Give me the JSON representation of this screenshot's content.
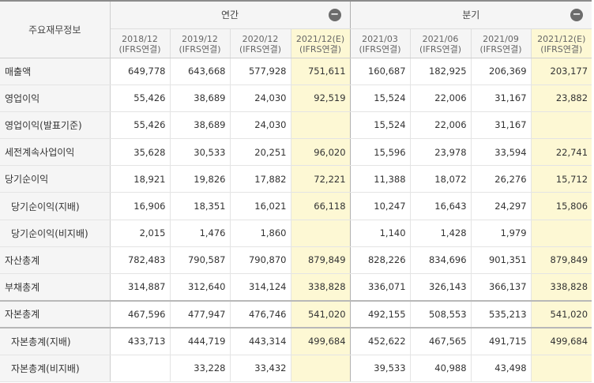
{
  "header": {
    "corner_label": "주요재무정보",
    "annual_label": "연간",
    "quarter_label": "분기",
    "toggle_symbol": "−",
    "periods": [
      {
        "date": "2018/12",
        "basis": "(IFRS연결)"
      },
      {
        "date": "2019/12",
        "basis": "(IFRS연결)"
      },
      {
        "date": "2020/12",
        "basis": "(IFRS연결)"
      },
      {
        "date": "2021/12(E)",
        "basis": "(IFRS연결)"
      },
      {
        "date": "2021/03",
        "basis": "(IFRS연결)"
      },
      {
        "date": "2021/06",
        "basis": "(IFRS연결)"
      },
      {
        "date": "2021/09",
        "basis": "(IFRS연결)"
      },
      {
        "date": "2021/12(E)",
        "basis": "(IFRS연결)"
      }
    ]
  },
  "rows": [
    {
      "label": "매출액",
      "values": [
        "649,778",
        "643,668",
        "577,928",
        "751,611",
        "160,687",
        "182,925",
        "206,369",
        "203,177"
      ]
    },
    {
      "label": "영업이익",
      "values": [
        "55,426",
        "38,689",
        "24,030",
        "92,519",
        "15,524",
        "22,006",
        "31,167",
        "23,882"
      ]
    },
    {
      "label": "영업이익(발표기준)",
      "values": [
        "55,426",
        "38,689",
        "24,030",
        "",
        "15,524",
        "22,006",
        "31,167",
        ""
      ]
    },
    {
      "label": "세전계속사업이익",
      "values": [
        "35,628",
        "30,533",
        "20,251",
        "96,020",
        "15,596",
        "23,978",
        "33,594",
        "22,741"
      ]
    },
    {
      "label": "당기순이익",
      "values": [
        "18,921",
        "19,826",
        "17,882",
        "72,221",
        "11,388",
        "18,072",
        "26,276",
        "15,712"
      ]
    },
    {
      "label": "당기순이익(지배)",
      "values": [
        "16,906",
        "18,351",
        "16,021",
        "66,118",
        "10,247",
        "16,643",
        "24,297",
        "15,806"
      ]
    },
    {
      "label": "당기순이익(비지배)",
      "values": [
        "2,015",
        "1,476",
        "1,860",
        "",
        "1,140",
        "1,428",
        "1,979",
        ""
      ]
    },
    {
      "label": "자산총계",
      "values": [
        "782,483",
        "790,587",
        "790,870",
        "879,849",
        "828,226",
        "834,696",
        "901,351",
        "879,849"
      ]
    },
    {
      "label": "부채총계",
      "values": [
        "314,887",
        "312,640",
        "314,124",
        "338,828",
        "336,071",
        "326,143",
        "366,137",
        "338,828"
      ]
    },
    {
      "label": "자본총계",
      "values": [
        "467,596",
        "477,947",
        "476,746",
        "541,020",
        "492,155",
        "508,553",
        "535,213",
        "541,020"
      ]
    },
    {
      "label": "자본총계(지배)",
      "values": [
        "433,713",
        "444,719",
        "443,314",
        "499,684",
        "452,622",
        "467,565",
        "491,715",
        "499,684"
      ]
    },
    {
      "label": "자본총계(비지배)",
      "values": [
        "",
        "33,228",
        "33,432",
        "",
        "39,533",
        "40,988",
        "43,498",
        ""
      ]
    }
  ],
  "colors": {
    "estimate_highlight": "#fdf8d4",
    "label_background": "#f5f5f5",
    "toggle_circle": "#6c6c6c"
  }
}
